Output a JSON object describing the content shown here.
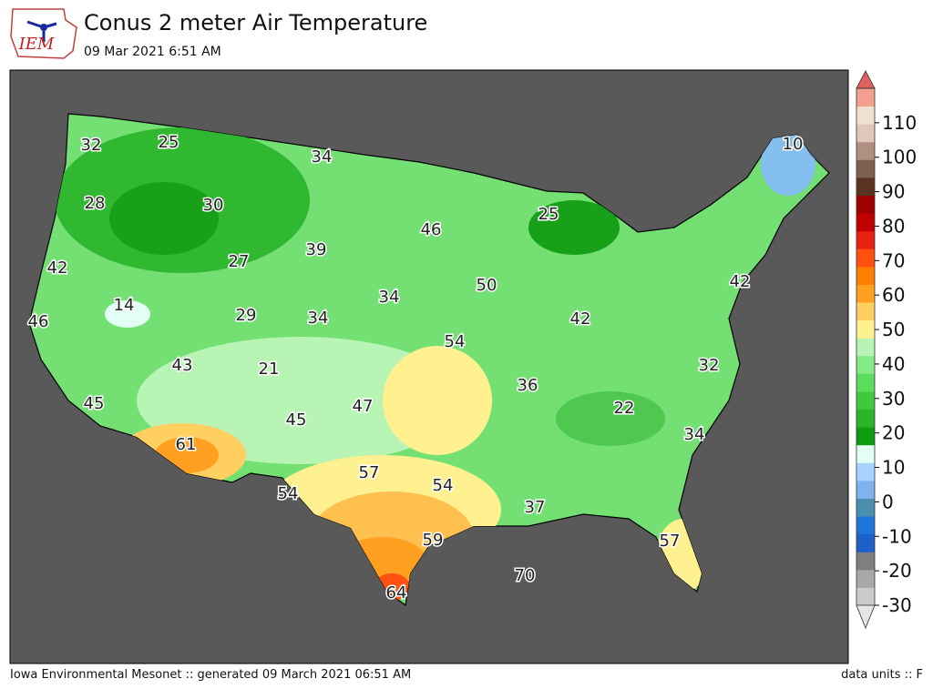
{
  "header": {
    "logo_text": "IEM",
    "title": "Conus 2 meter Air Temperature",
    "subtitle": "09 Mar 2021 6:51 AM"
  },
  "map": {
    "labels": [
      32,
      25,
      34,
      10,
      28,
      30,
      25,
      46,
      39,
      27,
      42,
      34,
      50,
      42,
      14,
      29,
      34,
      42,
      46,
      54,
      43,
      21,
      32,
      36,
      45,
      47,
      22,
      45,
      34,
      61,
      57,
      54,
      54,
      37,
      57,
      59,
      70,
      64
    ]
  },
  "colorbar": {
    "range": [
      -30,
      120
    ],
    "ticks": [
      -30,
      -20,
      -10,
      0,
      10,
      20,
      30,
      40,
      50,
      60,
      70,
      80,
      90,
      100,
      110
    ],
    "colors": [
      "#e6e6e6",
      "#cccccc",
      "#a8a8a8",
      "#7f7f7f",
      "#1f5fc8",
      "#1e74d8",
      "#4a8fb0",
      "#7fb3ee",
      "#a8d2ff",
      "#e2fff4",
      "#109c10",
      "#2cb42c",
      "#40c840",
      "#5cdc5c",
      "#84ea84",
      "#b8f4b4",
      "#fff090",
      "#ffd060",
      "#ffa020",
      "#ff8000",
      "#ff5010",
      "#e82010",
      "#c00000",
      "#a00000",
      "#5a3420",
      "#806050",
      "#b09080",
      "#e0c8b8",
      "#f0e0d0",
      "#f4a090",
      "#e06060"
    ]
  },
  "footer": {
    "left": "Iowa Environmental Mesonet :: generated 09 March 2021 06:51 AM",
    "right": "data units :: F"
  }
}
